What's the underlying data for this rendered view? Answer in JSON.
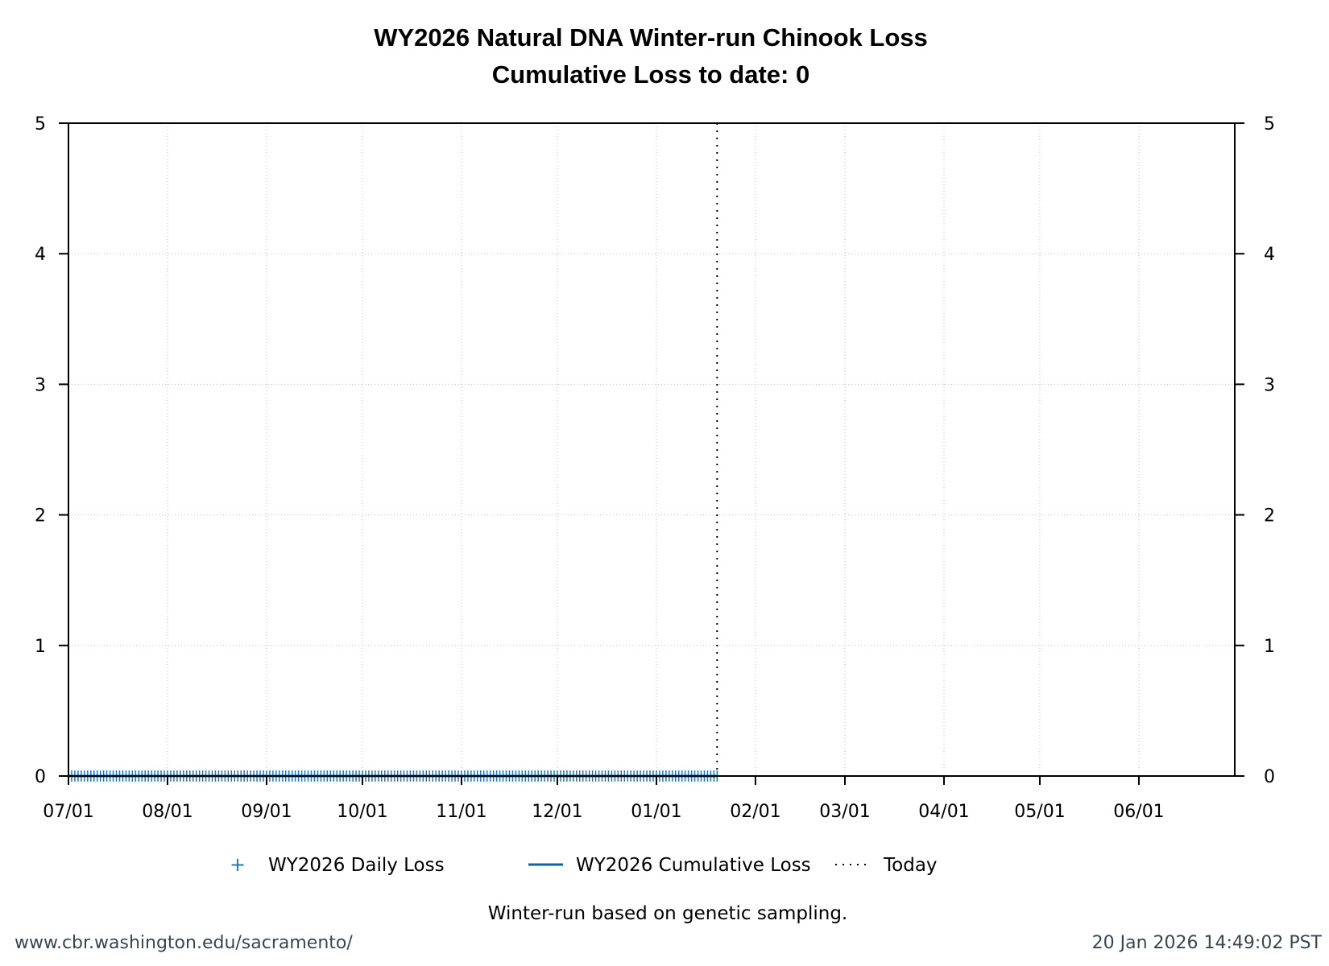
{
  "chart_data": {
    "type": "line",
    "title": "WY2026 Natural DNA Winter-run Chinook Loss",
    "subtitle": "Cumulative Loss to date: 0",
    "xlabel": "",
    "ylabel": "",
    "xlim": [
      "2025-07-01",
      "2026-07-01"
    ],
    "ylim": [
      0,
      5
    ],
    "yticks": [
      "0",
      "1",
      "2",
      "3",
      "4",
      "5"
    ],
    "xticks": [
      {
        "date": "2025-07-01",
        "label": "07/01"
      },
      {
        "date": "2025-08-01",
        "label": "08/01"
      },
      {
        "date": "2025-09-01",
        "label": "09/01"
      },
      {
        "date": "2025-10-01",
        "label": "10/01"
      },
      {
        "date": "2025-11-01",
        "label": "11/01"
      },
      {
        "date": "2025-12-01",
        "label": "12/01"
      },
      {
        "date": "2026-01-01",
        "label": "01/01"
      },
      {
        "date": "2026-02-01",
        "label": "02/01"
      },
      {
        "date": "2026-03-01",
        "label": "03/01"
      },
      {
        "date": "2026-04-01",
        "label": "04/01"
      },
      {
        "date": "2026-05-01",
        "label": "05/01"
      },
      {
        "date": "2026-06-01",
        "label": "06/01"
      }
    ],
    "grid": true,
    "legend_position": "bottom",
    "today": "2026-01-20",
    "series": [
      {
        "name": "WY2026 Daily Loss",
        "style": "plus-markers",
        "color": "#1f78c1",
        "start": "2025-07-01",
        "end": "2026-01-20",
        "value_each_day": 0
      },
      {
        "name": "WY2026 Cumulative Loss",
        "style": "line",
        "color": "#0a64ad",
        "start": "2025-07-01",
        "end": "2026-01-20",
        "value_each_day": 0
      },
      {
        "name": "Today",
        "style": "dotted-vertical",
        "color": "#000000"
      }
    ]
  },
  "footnote": "Winter-run based on genetic sampling.",
  "footer": {
    "url": "www.cbr.washington.edu/sacramento/",
    "timestamp": "20 Jan 2026 14:49:02 PST"
  }
}
